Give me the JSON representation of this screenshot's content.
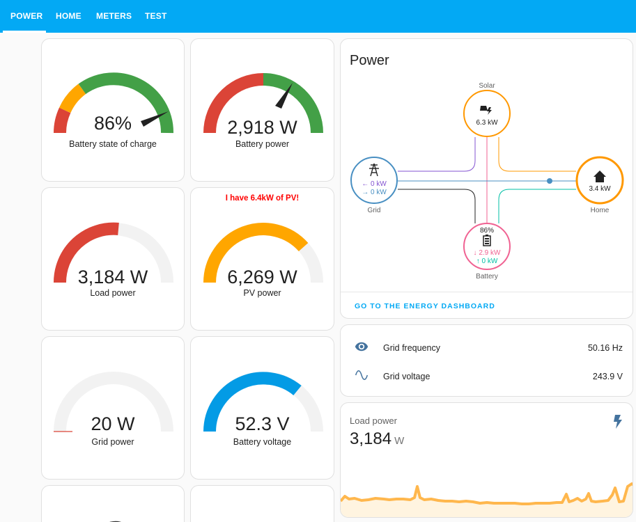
{
  "tabs": [
    {
      "label": "POWER",
      "active": true
    },
    {
      "label": "HOME",
      "active": false
    },
    {
      "label": "METERS",
      "active": false
    },
    {
      "label": "TEST",
      "active": false
    }
  ],
  "gauges": {
    "battery_soc": {
      "value": "86%",
      "label": "Battery state of charge",
      "fraction": 0.86
    },
    "battery_power": {
      "value": "2,918 W",
      "label": "Battery power",
      "fraction": 0.78
    },
    "load_power": {
      "value": "3,184 W",
      "label": "Load power",
      "fraction": 0.53
    },
    "pv_power": {
      "value": "6,269 W",
      "label": "PV power",
      "fraction": 0.84,
      "note": "I have 6.4kW of PV!"
    },
    "grid_power": {
      "value": "20 W",
      "label": "Grid power",
      "fraction": 0.005
    },
    "battery_voltage": {
      "value": "52.3 V",
      "label": "Battery voltage",
      "fraction": 0.78
    }
  },
  "power_flow": {
    "title": "Power",
    "solar": {
      "label": "Solar",
      "value": "6.3 kW"
    },
    "grid": {
      "label": "Grid",
      "import": "0 kW",
      "export": "0 kW"
    },
    "home": {
      "label": "Home",
      "value": "3.4 kW"
    },
    "battery": {
      "label": "Battery",
      "soc": "86%",
      "discharge": "2.9 kW",
      "charge": "0 kW"
    },
    "link": "GO TO THE ENERGY DASHBOARD"
  },
  "entities": [
    {
      "name": "Grid frequency",
      "value": "50.16 Hz",
      "icon": "eye-icon"
    },
    {
      "name": "Grid voltage",
      "value": "243.9 V",
      "icon": "sine-wave-icon"
    }
  ],
  "load_sensor": {
    "title": "Load power",
    "value": "3,184",
    "unit": "W",
    "icon": "flash-icon"
  },
  "colors": {
    "header": "#03a9f4",
    "green": "#43a047",
    "orange": "#ffa600",
    "red": "#db4437",
    "blue": "#039be5",
    "solar": "#ff9800",
    "grid": "#488fc2",
    "battery": "#f06292",
    "export": "#8353d1"
  }
}
